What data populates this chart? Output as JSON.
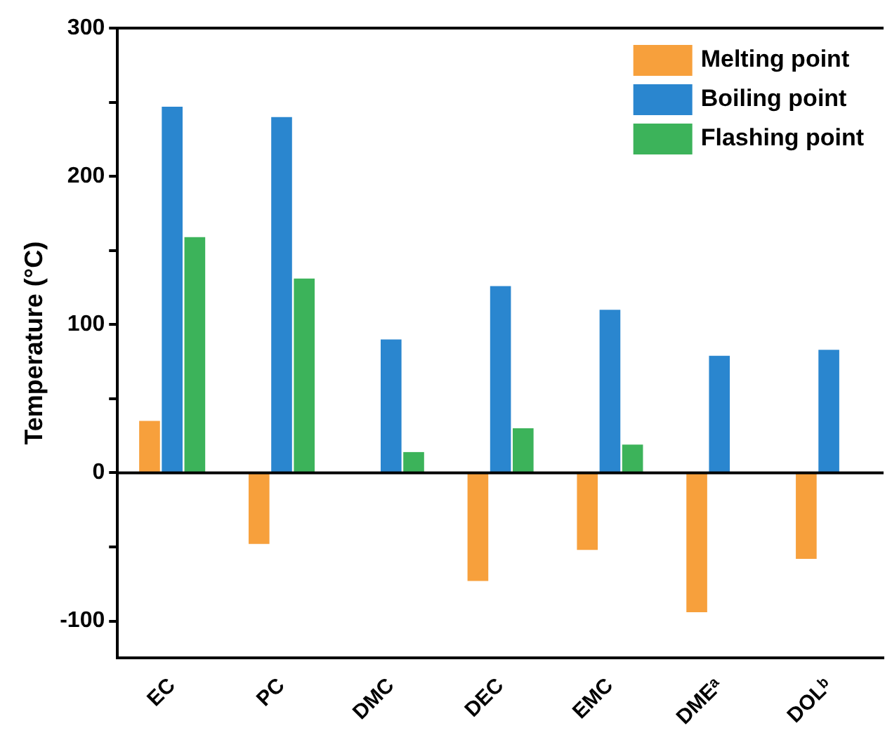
{
  "chart_data": {
    "type": "bar",
    "ylabel": "Temperature (°C)",
    "categories": [
      "EC",
      "PC",
      "DMC",
      "DEC",
      "EMC",
      "DMEᵃ",
      "DOLᵇ"
    ],
    "series": [
      {
        "name": "Melting point",
        "color": "#f7a03c",
        "values": [
          35,
          -48,
          null,
          -73,
          -52,
          -94,
          -58
        ]
      },
      {
        "name": "Boiling point",
        "color": "#2a86cf",
        "values": [
          247,
          240,
          90,
          126,
          110,
          79,
          83
        ]
      },
      {
        "name": "Flashing point",
        "color": "#3cb35a",
        "values": [
          159,
          131,
          14,
          30,
          19,
          null,
          null
        ]
      }
    ],
    "ylim": [
      -125,
      300
    ],
    "yticks": [
      -100,
      {
        "value": -50,
        "label": null
      },
      0,
      {
        "value": 50,
        "label": null
      },
      100,
      {
        "value": 150,
        "label": null
      },
      200,
      {
        "value": 250,
        "label": null
      },
      300
    ],
    "ref_lines": [
      {
        "axis": "y",
        "value": 0
      }
    ],
    "grid": false,
    "legend": "top right"
  }
}
